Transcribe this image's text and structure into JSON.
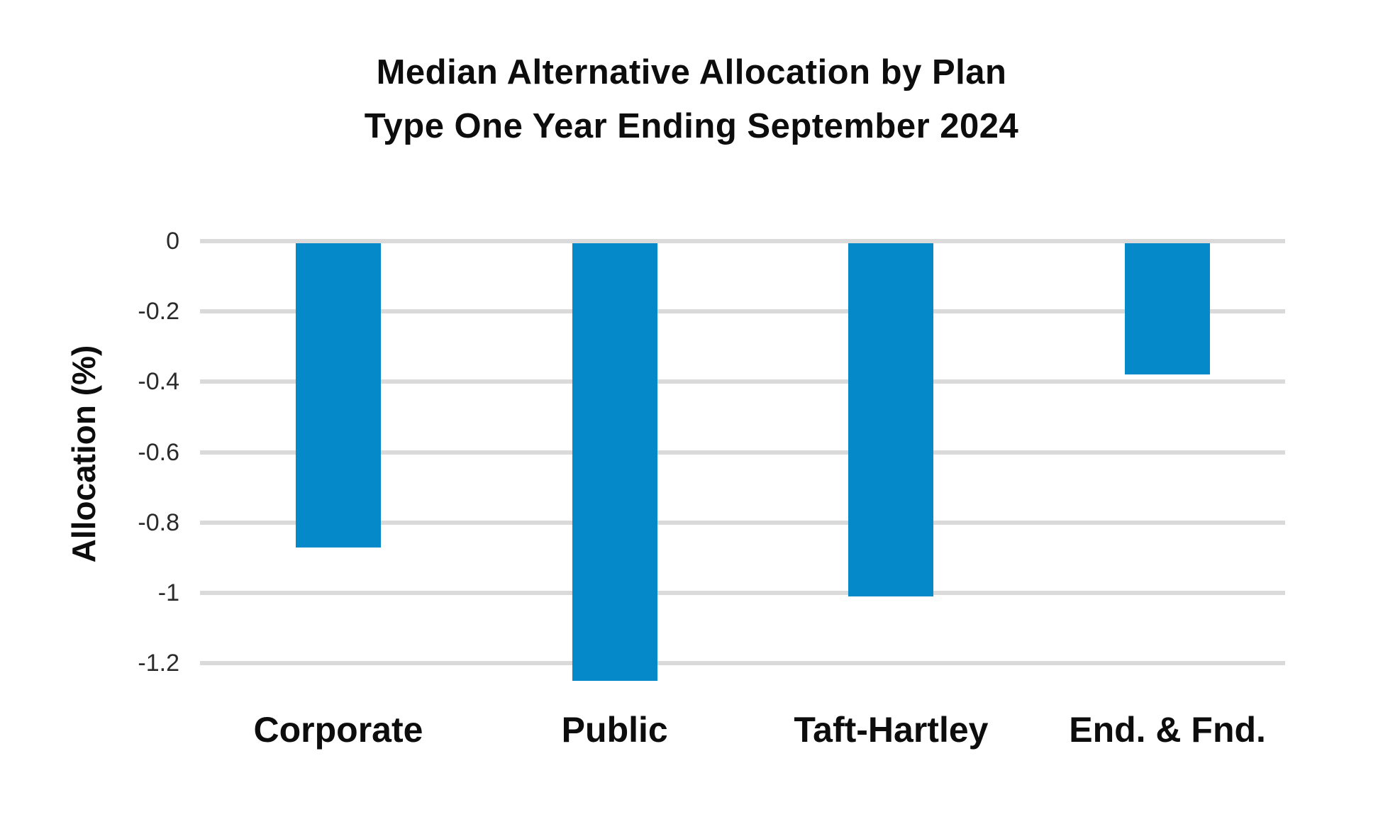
{
  "chart": {
    "title_line1": "Median Alternative Allocation by Plan",
    "title_line2": "Type One Year Ending September 2024",
    "ylabel": "Allocation (%)"
  },
  "chart_data": {
    "type": "bar",
    "title": "Median Alternative Allocation by Plan Type One Year Ending September 2024",
    "categories": [
      "Corporate",
      "Public",
      "Taft-Hartley",
      "End. & Fnd."
    ],
    "values": [
      -0.87,
      -1.25,
      -1.01,
      -0.38
    ],
    "xlabel": "",
    "ylabel": "Allocation (%)",
    "ylim": [
      -1.3,
      0
    ],
    "yticks": [
      0,
      -0.2,
      -0.4,
      -0.6,
      -0.8,
      -1,
      -1.2
    ],
    "ytick_labels": [
      "0",
      "-0.2",
      "-0.4",
      "-0.6",
      "-0.8",
      "-1",
      "-1.2"
    ],
    "grid": true,
    "legend": false,
    "bar_color": "#0589C9",
    "gridline_color": "#DADADA",
    "text_color": "#0D0D0D"
  }
}
